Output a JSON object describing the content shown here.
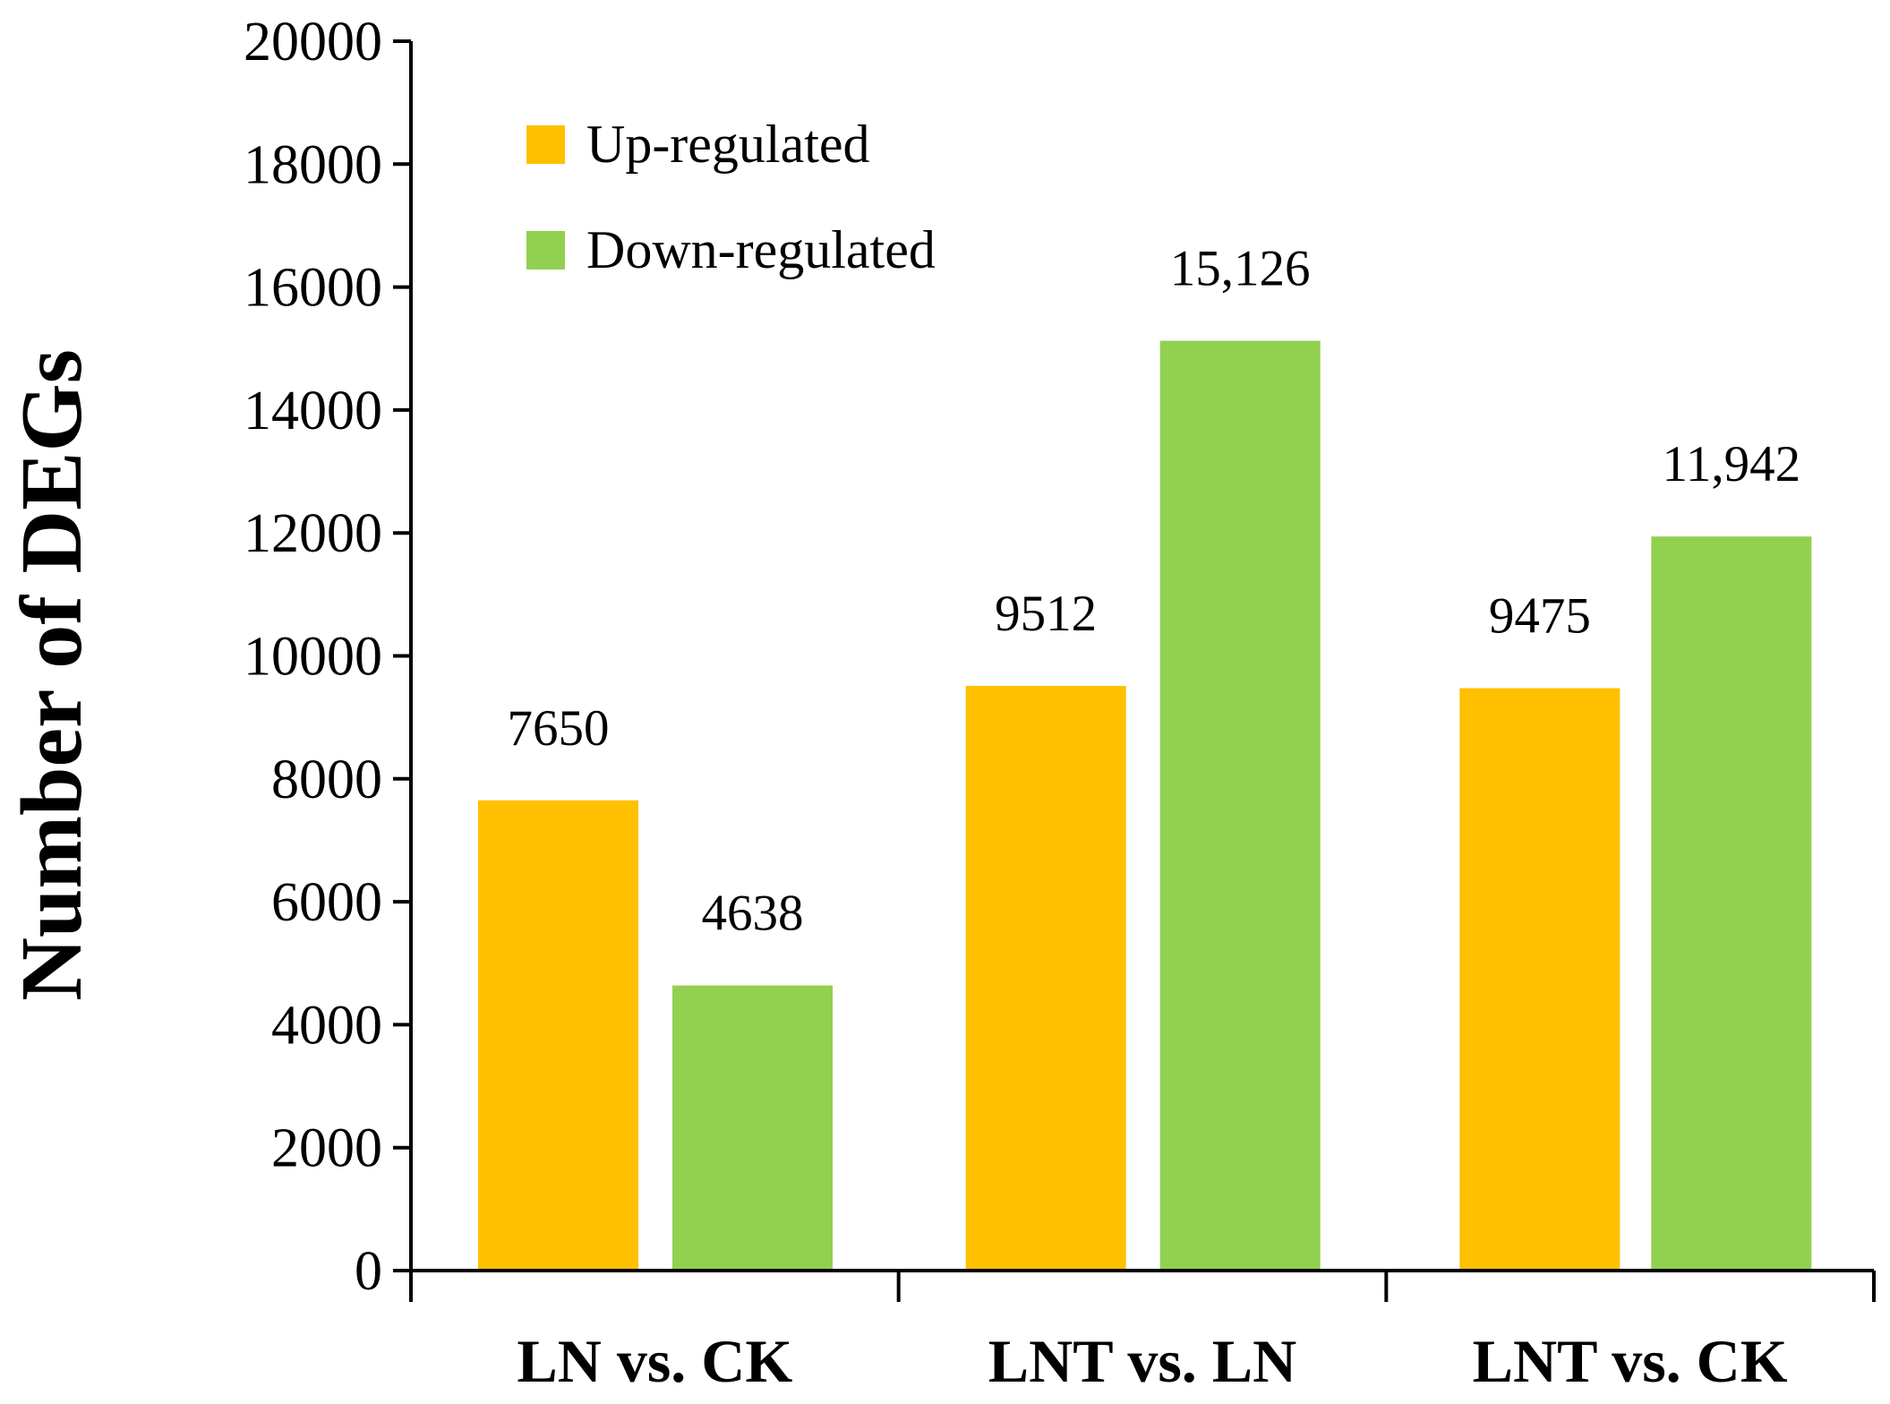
{
  "chart_data": {
    "type": "bar",
    "title": "",
    "xlabel": "",
    "ylabel": "Number of DEGs",
    "ylim": [
      0,
      20000
    ],
    "yticks": [
      0,
      2000,
      4000,
      6000,
      8000,
      10000,
      12000,
      14000,
      16000,
      18000,
      20000
    ],
    "categories": [
      "LN vs. CK",
      "LNT vs. LN",
      "LNT vs. CK"
    ],
    "series": [
      {
        "name": "Up-regulated",
        "color": "#FFC000",
        "values": [
          7650,
          9512,
          9475
        ],
        "labels": [
          "7650",
          "9512",
          "9475"
        ]
      },
      {
        "name": "Down-regulated",
        "color": "#92D050",
        "values": [
          4638,
          15126,
          11942
        ],
        "labels": [
          "4638",
          "15,126",
          "11,942"
        ]
      }
    ],
    "legend": "top-left",
    "grid": false
  }
}
